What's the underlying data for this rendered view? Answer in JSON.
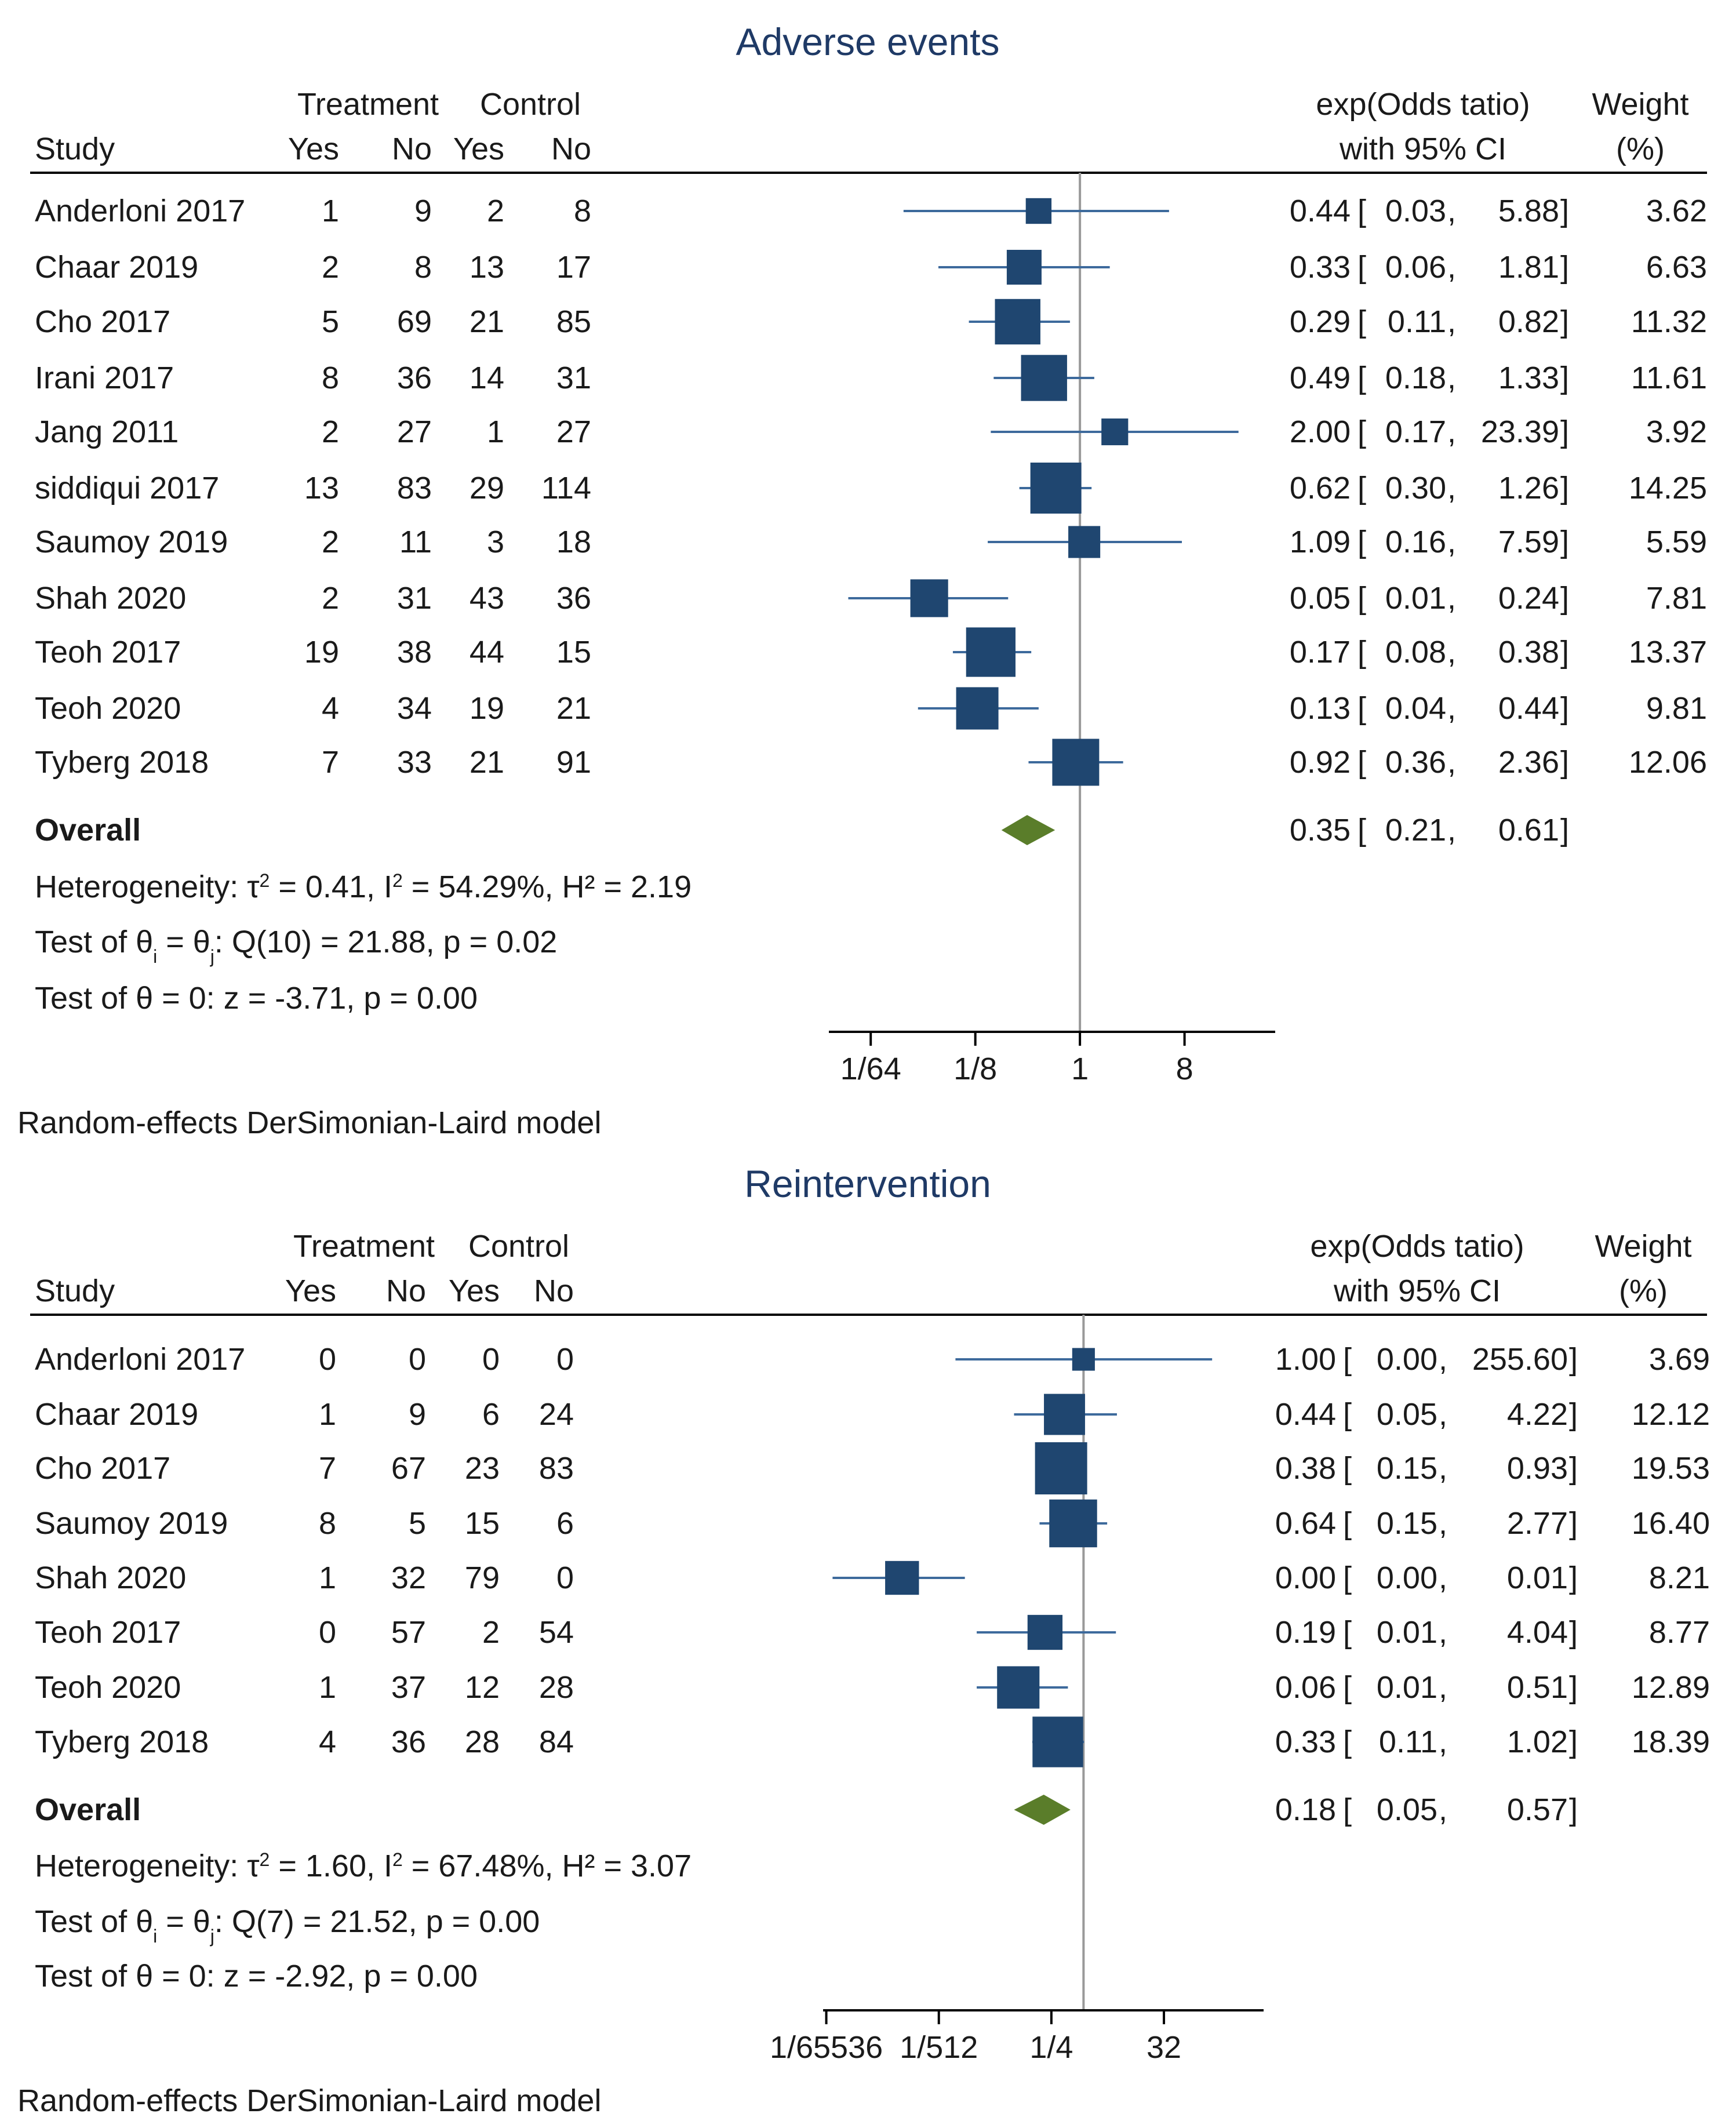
{
  "chart_data": [
    {
      "type": "forest",
      "title": "Adverse events",
      "headers": {
        "study": "Study",
        "treatment": "Treatment",
        "control": "Control",
        "yes": "Yes",
        "no": "No",
        "effect_line1": "exp(Odds tatio)",
        "effect_line2": "with 95% CI",
        "weight_line1": "Weight",
        "weight_line2": "(%)"
      },
      "studies": [
        {
          "study": "Anderloni 2017",
          "t_yes": "1",
          "t_no": "9",
          "c_yes": "2",
          "c_no": "8",
          "or": 0.44,
          "lo": 0.03,
          "hi": 5.88,
          "or_text": "0.44",
          "lo_text": "0.03",
          "hi_text": "5.88",
          "weight": 3.62,
          "weight_text": "3.62"
        },
        {
          "study": "Chaar 2019",
          "t_yes": "2",
          "t_no": "8",
          "c_yes": "13",
          "c_no": "17",
          "or": 0.33,
          "lo": 0.06,
          "hi": 1.81,
          "or_text": "0.33",
          "lo_text": "0.06",
          "hi_text": "1.81",
          "weight": 6.63,
          "weight_text": "6.63"
        },
        {
          "study": "Cho 2017",
          "t_yes": "5",
          "t_no": "69",
          "c_yes": "21",
          "c_no": "85",
          "or": 0.29,
          "lo": 0.11,
          "hi": 0.82,
          "or_text": "0.29",
          "lo_text": "0.11",
          "hi_text": "0.82",
          "weight": 11.32,
          "weight_text": "11.32"
        },
        {
          "study": "Irani 2017",
          "t_yes": "8",
          "t_no": "36",
          "c_yes": "14",
          "c_no": "31",
          "or": 0.49,
          "lo": 0.18,
          "hi": 1.33,
          "or_text": "0.49",
          "lo_text": "0.18",
          "hi_text": "1.33",
          "weight": 11.61,
          "weight_text": "11.61"
        },
        {
          "study": "Jang 2011",
          "t_yes": "2",
          "t_no": "27",
          "c_yes": "1",
          "c_no": "27",
          "or": 2.0,
          "lo": 0.17,
          "hi": 23.39,
          "or_text": "2.00",
          "lo_text": "0.17",
          "hi_text": "23.39",
          "weight": 3.92,
          "weight_text": "3.92"
        },
        {
          "study": "siddiqui 2017",
          "t_yes": "13",
          "t_no": "83",
          "c_yes": "29",
          "c_no": "114",
          "or": 0.62,
          "lo": 0.3,
          "hi": 1.26,
          "or_text": "0.62",
          "lo_text": "0.30",
          "hi_text": "1.26",
          "weight": 14.25,
          "weight_text": "14.25"
        },
        {
          "study": "Saumoy 2019",
          "t_yes": "2",
          "t_no": "11",
          "c_yes": "3",
          "c_no": "18",
          "or": 1.09,
          "lo": 0.16,
          "hi": 7.59,
          "or_text": "1.09",
          "lo_text": "0.16",
          "hi_text": "7.59",
          "weight": 5.59,
          "weight_text": "5.59"
        },
        {
          "study": "Shah 2020",
          "t_yes": "2",
          "t_no": "31",
          "c_yes": "43",
          "c_no": "36",
          "or": 0.05,
          "lo": 0.01,
          "hi": 0.24,
          "or_text": "0.05",
          "lo_text": "0.01",
          "hi_text": "0.24",
          "weight": 7.81,
          "weight_text": "7.81"
        },
        {
          "study": "Teoh 2017",
          "t_yes": "19",
          "t_no": "38",
          "c_yes": "44",
          "c_no": "15",
          "or": 0.17,
          "lo": 0.08,
          "hi": 0.38,
          "or_text": "0.17",
          "lo_text": "0.08",
          "hi_text": "0.38",
          "weight": 13.37,
          "weight_text": "13.37"
        },
        {
          "study": "Teoh 2020",
          "t_yes": "4",
          "t_no": "34",
          "c_yes": "19",
          "c_no": "21",
          "or": 0.13,
          "lo": 0.04,
          "hi": 0.44,
          "or_text": "0.13",
          "lo_text": "0.04",
          "hi_text": "0.44",
          "weight": 9.81,
          "weight_text": "9.81"
        },
        {
          "study": "Tyberg 2018",
          "t_yes": "7",
          "t_no": "33",
          "c_yes": "21",
          "c_no": "91",
          "or": 0.92,
          "lo": 0.36,
          "hi": 2.36,
          "or_text": "0.92",
          "lo_text": "0.36",
          "hi_text": "2.36",
          "weight": 12.06,
          "weight_text": "12.06"
        }
      ],
      "overall": {
        "label": "Overall",
        "or": 0.35,
        "lo": 0.21,
        "hi": 0.61,
        "or_text": "0.35",
        "lo_text": "0.21",
        "hi_text": "0.61"
      },
      "stats": [
        {
          "prefix": "Heterogeneity: τ",
          "sup": "2",
          "mid": " = 0.41, I",
          "sup2": "2",
          "suffix": " = 54.29%, H² = 2.19"
        },
        {
          "prefix": "Test of θ",
          "sub": "i",
          "mid": " = θ",
          "sub2": "j",
          "suffix": ": Q(10) = 21.88, p = 0.02"
        },
        {
          "prefix": "Test of θ = 0: z = -3.71, p = 0.00"
        }
      ],
      "x_axis": {
        "scale": "log2",
        "ticks": [
          {
            "value": 0.015625,
            "label": "1/64"
          },
          {
            "value": 0.125,
            "label": "1/8"
          },
          {
            "value": 1,
            "label": "1"
          },
          {
            "value": 8,
            "label": "8"
          }
        ],
        "range_log2": [
          -7.2,
          5.6
        ],
        "reference_line": 1
      },
      "model_note": "Random-effects DerSimonian-Laird model"
    },
    {
      "type": "forest",
      "title": "Reintervention",
      "headers": {
        "study": "Study",
        "treatment": "Treatment",
        "control": "Control",
        "yes": "Yes",
        "no": "No",
        "effect_line1": "exp(Odds tatio)",
        "effect_line2": "with 95% CI",
        "weight_line1": "Weight",
        "weight_line2": "(%)"
      },
      "studies": [
        {
          "study": "Anderloni 2017",
          "t_yes": "0",
          "t_no": "0",
          "c_yes": "0",
          "c_no": "0",
          "or": 1.0,
          "lo": 0.004,
          "hi": 255.6,
          "or_text": "1.00",
          "lo_text": "0.00",
          "hi_text": "255.60",
          "weight": 3.69,
          "weight_text": "3.69"
        },
        {
          "study": "Chaar 2019",
          "t_yes": "1",
          "t_no": "9",
          "c_yes": "6",
          "c_no": "24",
          "or": 0.44,
          "lo": 0.05,
          "hi": 4.22,
          "or_text": "0.44",
          "lo_text": "0.05",
          "hi_text": "4.22",
          "weight": 12.12,
          "weight_text": "12.12"
        },
        {
          "study": "Cho 2017",
          "t_yes": "7",
          "t_no": "67",
          "c_yes": "23",
          "c_no": "83",
          "or": 0.38,
          "lo": 0.15,
          "hi": 0.93,
          "or_text": "0.38",
          "lo_text": "0.15",
          "hi_text": "0.93",
          "weight": 19.53,
          "weight_text": "19.53"
        },
        {
          "study": "Saumoy 2019",
          "t_yes": "8",
          "t_no": "5",
          "c_yes": "15",
          "c_no": "6",
          "or": 0.64,
          "lo": 0.15,
          "hi": 2.77,
          "or_text": "0.64",
          "lo_text": "0.15",
          "hi_text": "2.77",
          "weight": 16.4,
          "weight_text": "16.40"
        },
        {
          "study": "Shah 2020",
          "t_yes": "1",
          "t_no": "32",
          "c_yes": "79",
          "c_no": "0",
          "or": 0.0004,
          "lo": 2e-05,
          "hi": 0.006,
          "or_text": "0.00",
          "lo_text": "0.00",
          "hi_text": "0.01",
          "weight": 8.21,
          "weight_text": "8.21"
        },
        {
          "study": "Teoh 2017",
          "t_yes": "0",
          "t_no": "57",
          "c_yes": "2",
          "c_no": "54",
          "or": 0.19,
          "lo": 0.01,
          "hi": 4.04,
          "or_text": "0.19",
          "lo_text": "0.01",
          "hi_text": "4.04",
          "weight": 8.77,
          "weight_text": "8.77"
        },
        {
          "study": "Teoh 2020",
          "t_yes": "1",
          "t_no": "37",
          "c_yes": "12",
          "c_no": "28",
          "or": 0.06,
          "lo": 0.01,
          "hi": 0.51,
          "or_text": "0.06",
          "lo_text": "0.01",
          "hi_text": "0.51",
          "weight": 12.89,
          "weight_text": "12.89"
        },
        {
          "study": "Tyberg 2018",
          "t_yes": "4",
          "t_no": "36",
          "c_yes": "28",
          "c_no": "84",
          "or": 0.33,
          "lo": 0.11,
          "hi": 1.02,
          "or_text": "0.33",
          "lo_text": "0.11",
          "hi_text": "1.02",
          "weight": 18.39,
          "weight_text": "18.39"
        }
      ],
      "overall": {
        "label": "Overall",
        "or": 0.18,
        "lo": 0.05,
        "hi": 0.57,
        "or_text": "0.18",
        "lo_text": "0.05",
        "hi_text": "0.57"
      },
      "stats": [
        {
          "prefix": "Heterogeneity: τ",
          "sup": "2",
          "mid": " = 1.60, I",
          "sup2": "2",
          "suffix": " = 67.48%, H² = 3.07"
        },
        {
          "prefix": "Test of θ",
          "sub": "i",
          "mid": " = θ",
          "sub2": "j",
          "suffix": ": Q(7) = 21.52, p = 0.00"
        },
        {
          "prefix": "Test of θ = 0: z = -2.92, p = 0.00"
        }
      ],
      "x_axis": {
        "scale": "log2",
        "ticks": [
          {
            "value": 1.52587890625e-05,
            "label": "1/65536"
          },
          {
            "value": 0.001953125,
            "label": "1/512"
          },
          {
            "value": 0.25,
            "label": "1/4"
          },
          {
            "value": 32,
            "label": "32"
          }
        ],
        "range_log2": [
          -16.2,
          11.2
        ],
        "reference_line": 1
      },
      "model_note": "Random-effects DerSimonian-Laird model"
    }
  ],
  "colors": {
    "title": "#1f3a66",
    "marker": "#1f4670",
    "ci_line": "#3d6a9c",
    "diamond": "#5a7d2a",
    "text": "#1a1a1a",
    "ref_line": "#999999",
    "rule": "#000000"
  }
}
